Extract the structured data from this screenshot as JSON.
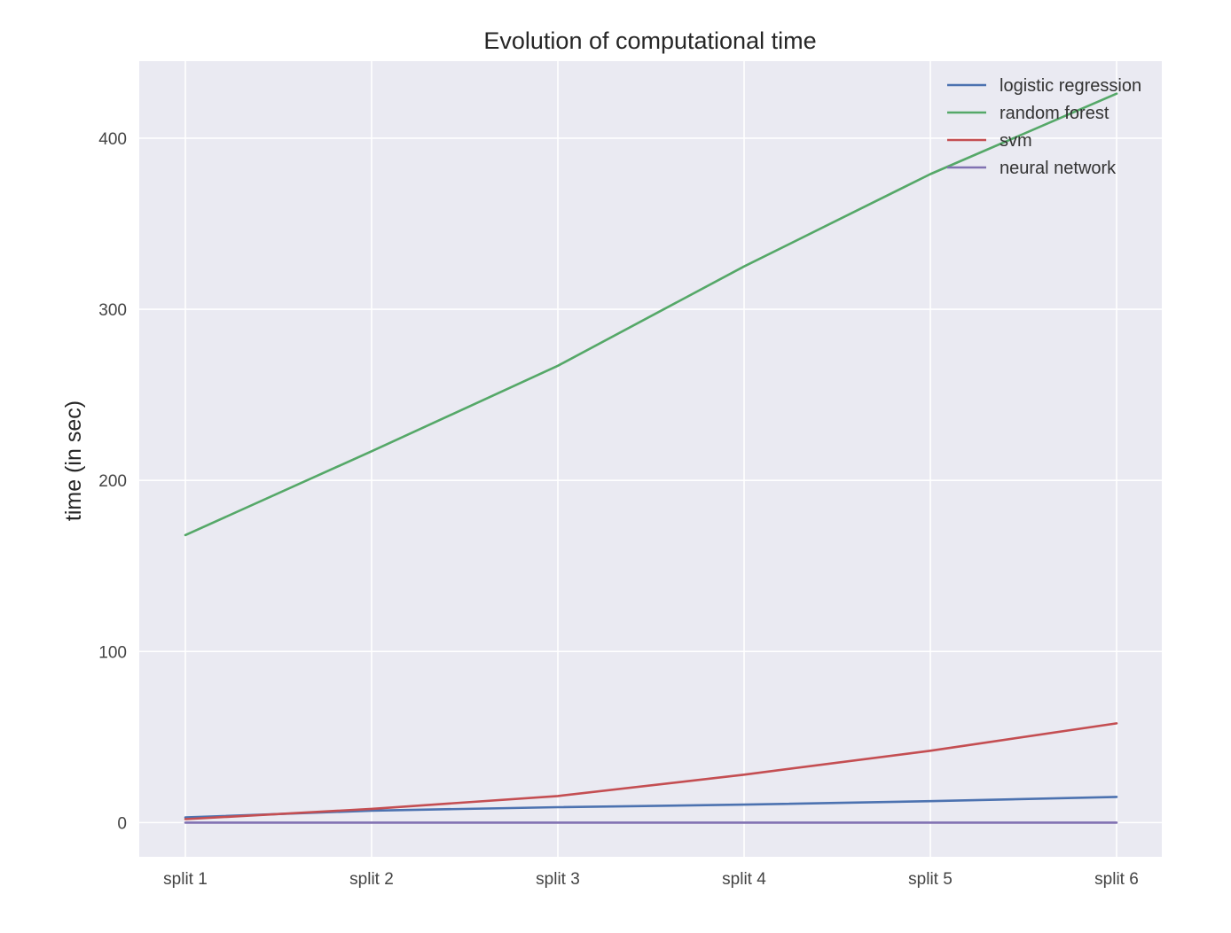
{
  "chart_data": {
    "type": "line",
    "title": "Evolution of computational time",
    "xlabel": "",
    "ylabel": "time (in sec)",
    "categories": [
      "split 1",
      "split 2",
      "split 3",
      "split 4",
      "split 5",
      "split 6"
    ],
    "ylim": [
      -20,
      445
    ],
    "yticks": [
      0,
      100,
      200,
      300,
      400
    ],
    "grid": true,
    "background": "#EAEAF2",
    "legend_position": "top-right",
    "series": [
      {
        "name": "logistic regression",
        "color": "#4C72B0",
        "values": [
          3,
          7,
          9,
          10.5,
          12.5,
          15
        ]
      },
      {
        "name": "random forest",
        "color": "#55A868",
        "values": [
          168,
          217,
          267,
          325,
          379,
          426
        ]
      },
      {
        "name": "svm",
        "color": "#C44E52",
        "values": [
          2,
          8,
          15.5,
          28,
          42,
          58
        ]
      },
      {
        "name": "neural network",
        "color": "#8172B2",
        "values": [
          0,
          0,
          0,
          0,
          0,
          0
        ]
      }
    ]
  }
}
